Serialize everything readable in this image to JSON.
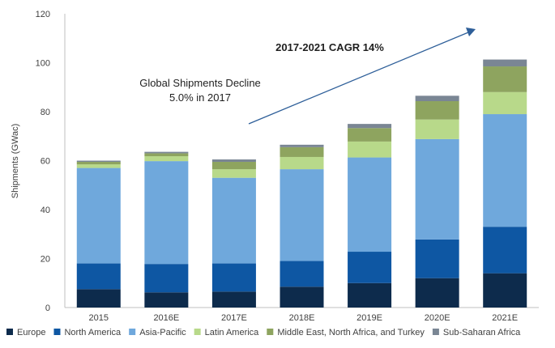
{
  "chart_data": {
    "type": "bar",
    "stacked": true,
    "title": "",
    "xlabel": "",
    "ylabel": "Shipments (GWac)",
    "ylim": [
      0,
      120
    ],
    "yticks": [
      0,
      20,
      40,
      60,
      80,
      100,
      120
    ],
    "grid": false,
    "legend_position": "bottom",
    "categories": [
      "2015",
      "2016E",
      "2017E",
      "2018E",
      "2019E",
      "2020E",
      "2021E"
    ],
    "series": [
      {
        "name": "Europe",
        "color": "#0d2b4c",
        "values": [
          7.5,
          6.2,
          6.5,
          8.5,
          10.0,
          12.0,
          14.0
        ]
      },
      {
        "name": "North America",
        "color": "#0e57a3",
        "values": [
          10.5,
          11.6,
          11.5,
          10.5,
          12.8,
          15.8,
          19.0
        ]
      },
      {
        "name": "Asia-Pacific",
        "color": "#6fa8dc",
        "values": [
          39.0,
          42.0,
          35.0,
          37.5,
          38.5,
          41.0,
          46.0
        ]
      },
      {
        "name": "Latin America",
        "color": "#b8d98a",
        "values": [
          1.5,
          2.0,
          3.5,
          5.0,
          6.5,
          8.0,
          9.0
        ]
      },
      {
        "name": "Middle East, North Africa, and Turkey",
        "color": "#8ea45f",
        "values": [
          1.0,
          1.2,
          3.0,
          4.0,
          5.5,
          7.5,
          10.5
        ]
      },
      {
        "name": "Sub-Saharan Africa",
        "color": "#7a8694",
        "values": [
          0.5,
          0.6,
          1.0,
          1.0,
          1.7,
          2.2,
          2.8
        ]
      }
    ],
    "annotations": {
      "decline_line1": "Global Shipments Decline",
      "decline_line2": "5.0% in 2017",
      "cagr": "2017-2021 CAGR 14%"
    },
    "arrow_color": "#2e5f99"
  }
}
